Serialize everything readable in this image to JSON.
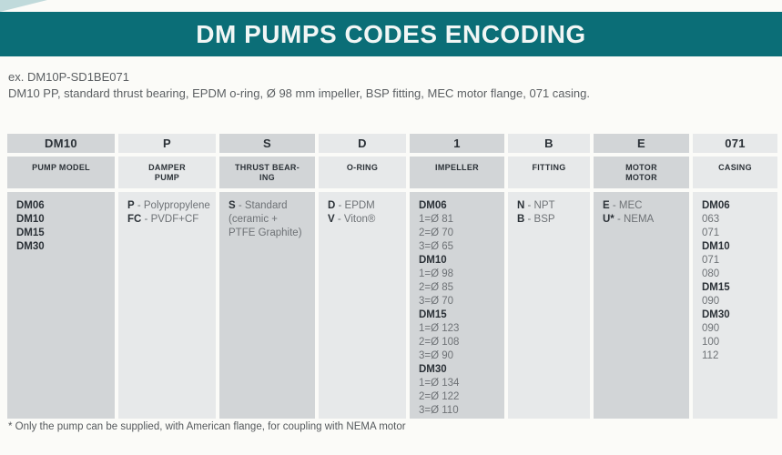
{
  "header": {
    "title": "DM PUMPS CODES ENCODING"
  },
  "example": {
    "code_line": "ex. DM10P-SD1BE071",
    "description": "DM10 PP, standard thrust bearing, EPDM o-ring, Ø 98 mm impeller, BSP fitting, MEC motor flange, 071 casing."
  },
  "footnote": "* Only the pump can be supplied, with American flange, for coupling with NEMA motor",
  "colors": {
    "teal_accent": "#0b6e77",
    "cell_dark_gray": "#d2d5d7",
    "cell_light_gray": "#e7e9ea",
    "text_dark": "#2b3137",
    "text_gray": "#6e7276"
  },
  "table": {
    "columns": [
      {
        "code": "DM10",
        "category_lines": [
          "PUMP MODEL"
        ],
        "lines": [
          {
            "b": "DM06",
            "t": ""
          },
          {
            "b": "DM10",
            "t": ""
          },
          {
            "b": "DM15",
            "t": ""
          },
          {
            "b": "DM30",
            "t": ""
          }
        ]
      },
      {
        "code": "P",
        "category_lines": [
          "DAMPER",
          "PUMP"
        ],
        "lines": [
          {
            "b": "P",
            "t": " - Polypropylene"
          },
          {
            "b": "FC",
            "t": " - PVDF+CF"
          }
        ]
      },
      {
        "code": "S",
        "category_lines": [
          "THRUST BEAR-",
          "ING"
        ],
        "lines": [
          {
            "b": "S",
            "t": " - Standard"
          },
          {
            "b": "",
            "t": "(ceramic +"
          },
          {
            "b": "",
            "t": "PTFE Graphite)"
          }
        ]
      },
      {
        "code": "D",
        "category_lines": [
          "O-RING"
        ],
        "lines": [
          {
            "b": "D",
            "t": " - EPDM"
          },
          {
            "b": "V",
            "t": " - Viton®"
          }
        ]
      },
      {
        "code": "1",
        "category_lines": [
          "IMPELLER"
        ],
        "lines": [
          {
            "b": "DM06",
            "t": ""
          },
          {
            "b": "",
            "t": "1=Ø 81"
          },
          {
            "b": "",
            "t": "2=Ø 70"
          },
          {
            "b": "",
            "t": "3=Ø 65"
          },
          {
            "b": "DM10",
            "t": ""
          },
          {
            "b": "",
            "t": "1=Ø 98"
          },
          {
            "b": "",
            "t": "2=Ø 85"
          },
          {
            "b": "",
            "t": "3=Ø 70"
          },
          {
            "b": "DM15",
            "t": ""
          },
          {
            "b": "",
            "t": "1=Ø 123"
          },
          {
            "b": "",
            "t": "2=Ø 108"
          },
          {
            "b": "",
            "t": "3=Ø 90"
          },
          {
            "b": "DM30",
            "t": ""
          },
          {
            "b": "",
            "t": "1=Ø 134"
          },
          {
            "b": "",
            "t": "2=Ø 122"
          },
          {
            "b": "",
            "t": "3=Ø 110"
          }
        ]
      },
      {
        "code": "B",
        "category_lines": [
          "FITTING"
        ],
        "lines": [
          {
            "b": "N",
            "t": " - NPT"
          },
          {
            "b": "B",
            "t": " - BSP"
          }
        ]
      },
      {
        "code": "E",
        "category_lines": [
          "MOTOR",
          "MOTOR"
        ],
        "lines": [
          {
            "b": "E",
            "t": " - MEC"
          },
          {
            "b": "U*",
            "t": " - NEMA"
          }
        ]
      },
      {
        "code": "071",
        "category_lines": [
          "CASING"
        ],
        "lines": [
          {
            "b": "DM06",
            "t": ""
          },
          {
            "b": "",
            "t": "063"
          },
          {
            "b": "",
            "t": "071"
          },
          {
            "b": "DM10",
            "t": ""
          },
          {
            "b": "",
            "t": "071"
          },
          {
            "b": "",
            "t": "080"
          },
          {
            "b": "DM15",
            "t": ""
          },
          {
            "b": "",
            "t": "090"
          },
          {
            "b": "DM30",
            "t": ""
          },
          {
            "b": "",
            "t": "090"
          },
          {
            "b": "",
            "t": "100"
          },
          {
            "b": "",
            "t": "112"
          }
        ]
      }
    ]
  }
}
